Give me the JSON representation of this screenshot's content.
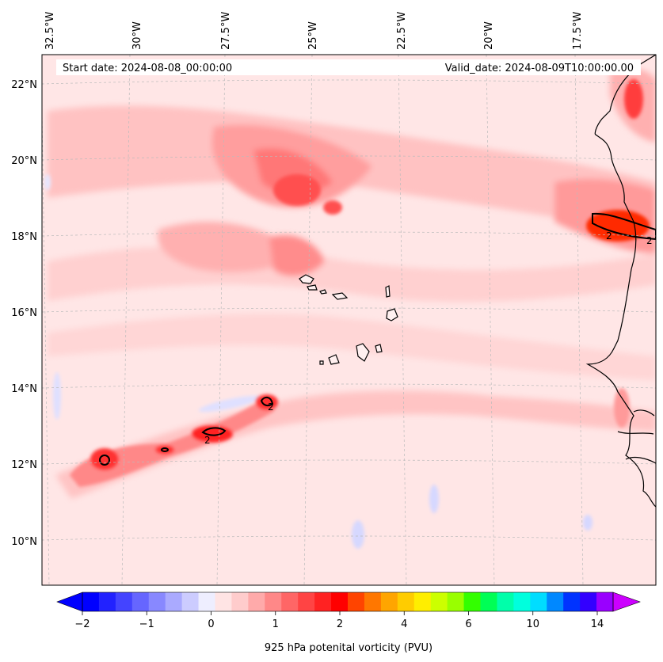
{
  "header": {
    "start_date": "Start date: 2024-08-08_00:00:00",
    "valid_date": "Valid_date: 2024-08-09T10:00:00.00"
  },
  "axes": {
    "longitude_labels": [
      "32.5°W",
      "30°W",
      "27.5°W",
      "25°W",
      "22.5°W",
      "20°W",
      "17.5°W"
    ],
    "latitude_labels": [
      "22°N",
      "20°N",
      "18°N",
      "16°N",
      "14°N",
      "12°N",
      "10°N"
    ],
    "lon_range": [
      -32.5,
      -15.3
    ],
    "lat_range": [
      8.9,
      22.7
    ],
    "grid": "dashed"
  },
  "field": {
    "variable": "925 hPa potenital vorticity (PVU)",
    "background_color": "#ffe4e4",
    "features": [
      {
        "type": "maximum",
        "lon": -31.2,
        "lat": 12.1,
        "value": 2
      },
      {
        "type": "maximum",
        "lon": -29.2,
        "lat": 12.4,
        "value": 2
      },
      {
        "type": "maximum",
        "lon": -27.6,
        "lat": 12.9,
        "value": 2
      },
      {
        "type": "maximum",
        "lon": -25.8,
        "lat": 13.6,
        "value": 2
      },
      {
        "type": "maximum",
        "lon": -16.5,
        "lat": 18.2,
        "value": 2
      },
      {
        "type": "maximum",
        "lon": -15.7,
        "lat": 21.5,
        "value": 1.5
      },
      {
        "type": "minimum",
        "lon": -31.9,
        "lat": 14.0,
        "value": -0.5
      },
      {
        "type": "minimum",
        "lon": -22.0,
        "lat": 11.5,
        "value": -0.5
      }
    ],
    "contour_label": "2"
  },
  "colorbar": {
    "label": "925 hPa potenital vorticity (PVU)",
    "tick_labels": [
      "−2",
      "−1",
      "0",
      "1",
      "2",
      "4",
      "6",
      "10",
      "14"
    ],
    "colors": [
      "#0000ff",
      "#2222ff",
      "#4444ff",
      "#6666ff",
      "#8888ff",
      "#aaaaff",
      "#ccccff",
      "#eeeeff",
      "#ffe4e4",
      "#ffcccc",
      "#ffaaaa",
      "#ff8888",
      "#ff6666",
      "#ff4444",
      "#ff2222",
      "#ff0000",
      "#ff4400",
      "#ff7700",
      "#ffa500",
      "#ffcc00",
      "#ffee00",
      "#ccff00",
      "#99ff00",
      "#33ff00",
      "#00ff55",
      "#00ffaa",
      "#00ffdd",
      "#00ddff",
      "#0088ff",
      "#0033ff",
      "#3300ff",
      "#9900ff"
    ],
    "under_color": "#0000ff",
    "over_color": "#cc00ff"
  }
}
